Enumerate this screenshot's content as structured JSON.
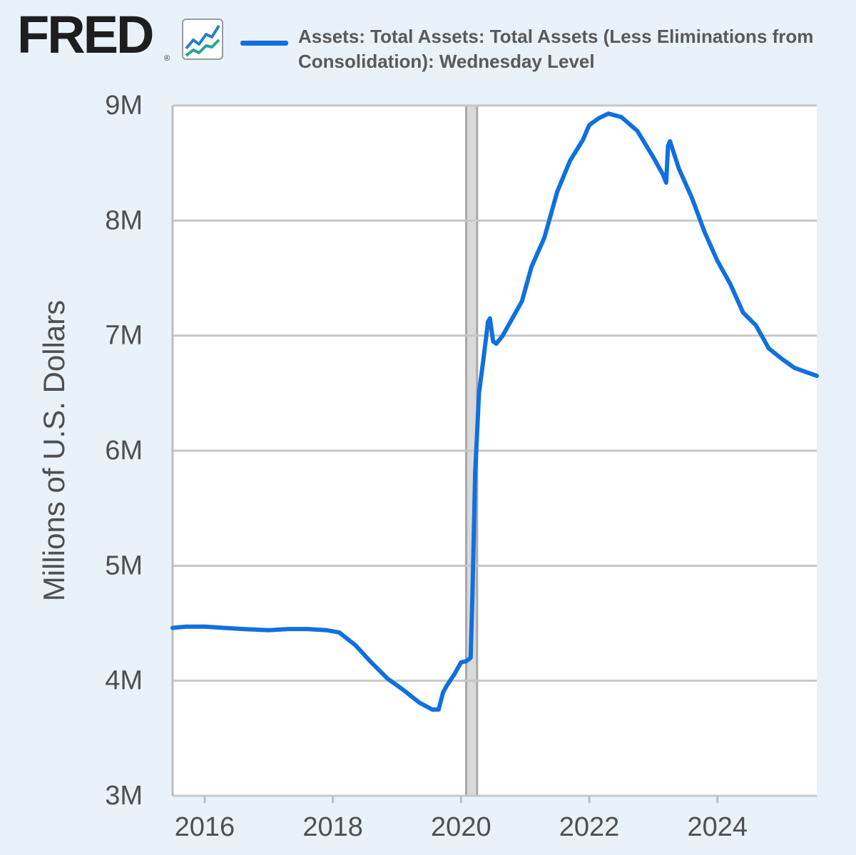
{
  "brand": {
    "name": "FRED",
    "registered": "®"
  },
  "chart_data": {
    "type": "line",
    "title": "",
    "xlabel": "",
    "ylabel": "Millions of U.S. Dollars",
    "ylim": [
      3000000,
      9000000
    ],
    "xlim": [
      2015.5,
      2025.55
    ],
    "y_ticks": [
      {
        "value": 3000000,
        "label": "3M"
      },
      {
        "value": 4000000,
        "label": "4M"
      },
      {
        "value": 5000000,
        "label": "5M"
      },
      {
        "value": 6000000,
        "label": "6M"
      },
      {
        "value": 7000000,
        "label": "7M"
      },
      {
        "value": 8000000,
        "label": "8M"
      },
      {
        "value": 9000000,
        "label": "9M"
      }
    ],
    "x_ticks": [
      {
        "value": 2016,
        "label": "2016"
      },
      {
        "value": 2018,
        "label": "2018"
      },
      {
        "value": 2020,
        "label": "2020"
      },
      {
        "value": 2022,
        "label": "2022"
      },
      {
        "value": 2024,
        "label": "2024"
      }
    ],
    "grid": true,
    "legend": "top",
    "recession_bands": [
      [
        2020.08,
        2020.25
      ]
    ],
    "series": [
      {
        "name": "Assets: Total Assets: Total Assets (Less Eliminations from Consolidation): Wednesday Level",
        "color": "#1170df",
        "x": [
          2015.5,
          2015.7,
          2016.0,
          2016.3,
          2016.6,
          2017.0,
          2017.3,
          2017.6,
          2017.9,
          2018.1,
          2018.35,
          2018.6,
          2018.85,
          2019.1,
          2019.35,
          2019.55,
          2019.65,
          2019.72,
          2019.78,
          2019.9,
          2020.0,
          2020.08,
          2020.15,
          2020.18,
          2020.22,
          2020.28,
          2020.35,
          2020.42,
          2020.45,
          2020.5,
          2020.55,
          2020.65,
          2020.8,
          2020.95,
          2021.1,
          2021.3,
          2021.5,
          2021.7,
          2021.9,
          2022.0,
          2022.15,
          2022.3,
          2022.5,
          2022.75,
          2023.0,
          2023.15,
          2023.2,
          2023.23,
          2023.26,
          2023.4,
          2023.6,
          2023.8,
          2024.0,
          2024.2,
          2024.4,
          2024.6,
          2024.8,
          2025.0,
          2025.2,
          2025.4,
          2025.55
        ],
        "y": [
          4460000,
          4470000,
          4470000,
          4460000,
          4450000,
          4440000,
          4450000,
          4450000,
          4440000,
          4420000,
          4310000,
          4160000,
          4020000,
          3920000,
          3810000,
          3750000,
          3750000,
          3900000,
          3960000,
          4060000,
          4160000,
          4170000,
          4200000,
          4800000,
          5800000,
          6500000,
          6800000,
          7120000,
          7150000,
          6950000,
          6930000,
          7000000,
          7150000,
          7300000,
          7600000,
          7850000,
          8250000,
          8520000,
          8700000,
          8830000,
          8890000,
          8930000,
          8900000,
          8780000,
          8550000,
          8400000,
          8330000,
          8650000,
          8690000,
          8450000,
          8200000,
          7900000,
          7650000,
          7450000,
          7200000,
          7090000,
          6890000,
          6800000,
          6720000,
          6680000,
          6650000
        ]
      }
    ]
  }
}
